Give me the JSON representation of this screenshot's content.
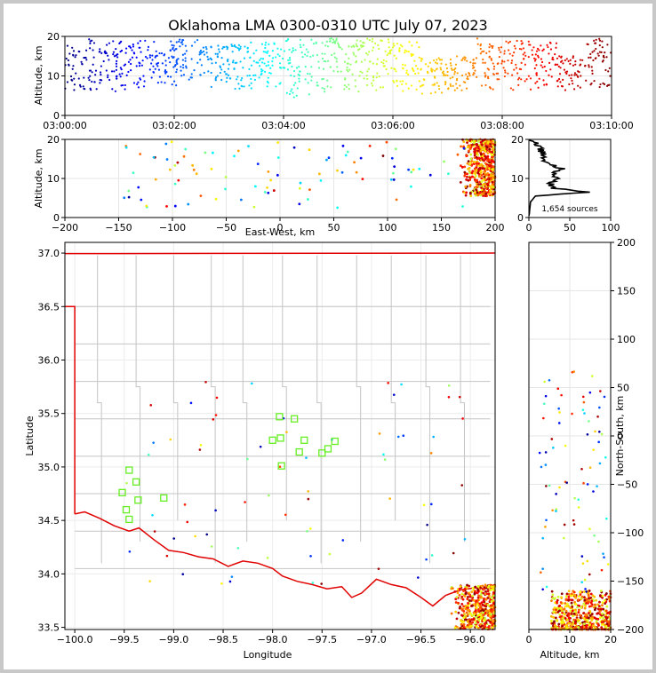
{
  "chart_data": {
    "type": "scatter",
    "title": "Oklahoma LMA 0300-0310 UTC July 07, 2023",
    "source_count_label": "1,654 sources",
    "colormap": "jet (time)",
    "panels": {
      "time_height": {
        "ylabel": "Altitude, km",
        "ylim": [
          0,
          20
        ],
        "yticks": [
          "0",
          "10",
          "20"
        ],
        "xlim_utc": [
          "03:00:00",
          "03:10:00"
        ],
        "xticks": [
          "03:00:00",
          "03:02:00",
          "03:04:00",
          "03:06:00",
          "03:08:00",
          "03:10:00"
        ],
        "columns_approx": [
          {
            "t_min": 0.0,
            "alt_min": 5.5,
            "alt_max": 19.5
          },
          {
            "t_min": 0.5,
            "alt_min": 6.0,
            "alt_max": 19.0
          },
          {
            "t_min": 1.0,
            "alt_min": 6.5,
            "alt_max": 19.0
          },
          {
            "t_min": 1.5,
            "alt_min": 7.0,
            "alt_max": 19.0
          },
          {
            "t_min": 2.0,
            "alt_min": 6.5,
            "alt_max": 19.5
          },
          {
            "t_min": 2.5,
            "alt_min": 7.0,
            "alt_max": 18.0
          },
          {
            "t_min": 3.0,
            "alt_min": 6.5,
            "alt_max": 19.0
          },
          {
            "t_min": 3.5,
            "alt_min": 7.0,
            "alt_max": 18.5
          },
          {
            "t_min": 4.0,
            "alt_min": 4.0,
            "alt_max": 19.5
          },
          {
            "t_min": 4.5,
            "alt_min": 6.0,
            "alt_max": 19.5
          },
          {
            "t_min": 5.0,
            "alt_min": 6.0,
            "alt_max": 19.0
          },
          {
            "t_min": 5.5,
            "alt_min": 6.0,
            "alt_max": 19.5
          },
          {
            "t_min": 6.0,
            "alt_min": 6.0,
            "alt_max": 19.0
          },
          {
            "t_min": 6.5,
            "alt_min": 5.5,
            "alt_max": 14.5
          },
          {
            "t_min": 7.0,
            "alt_min": 5.5,
            "alt_max": 15.0
          },
          {
            "t_min": 7.5,
            "alt_min": 6.0,
            "alt_max": 19.5
          },
          {
            "t_min": 8.0,
            "alt_min": 6.0,
            "alt_max": 19.0
          },
          {
            "t_min": 8.5,
            "alt_min": 6.0,
            "alt_max": 18.5
          },
          {
            "t_min": 9.0,
            "alt_min": 6.0,
            "alt_max": 15.0
          },
          {
            "t_min": 9.5,
            "alt_min": 6.0,
            "alt_max": 19.5
          }
        ]
      },
      "ew_height": {
        "xlabel": "East-West, km",
        "ylabel": "Altitude, km",
        "xlim": [
          -200,
          200
        ],
        "ylim": [
          0,
          20
        ],
        "xticks": [
          "−200",
          "−150",
          "−100",
          "−50",
          "0",
          "50",
          "100",
          "150",
          "200"
        ],
        "yticks": [
          "0",
          "10",
          "20"
        ]
      },
      "height_histogram": {
        "xlim": [
          0,
          100
        ],
        "ylim": [
          0,
          20
        ],
        "xticks": [
          "0",
          "50",
          "100"
        ],
        "yticks": [
          "0",
          "10",
          "20"
        ],
        "profile_approx": [
          {
            "alt": 4,
            "count": 2
          },
          {
            "alt": 5.5,
            "count": 8
          },
          {
            "alt": 6.5,
            "count": 75
          },
          {
            "alt": 7.5,
            "count": 30
          },
          {
            "alt": 9,
            "count": 25
          },
          {
            "alt": 10,
            "count": 38
          },
          {
            "alt": 11,
            "count": 28
          },
          {
            "alt": 12.5,
            "count": 40
          },
          {
            "alt": 14,
            "count": 22
          },
          {
            "alt": 16,
            "count": 18
          },
          {
            "alt": 18,
            "count": 12
          },
          {
            "alt": 19.5,
            "count": 10
          }
        ]
      },
      "plan_view": {
        "xlabel": "Longitude",
        "ylabel": "Latitude",
        "xlim": [
          -100.1,
          -95.75
        ],
        "ylim": [
          33.48,
          37.1
        ],
        "xticks": [
          "−100.0",
          "−99.5",
          "−99.0",
          "−98.5",
          "−98.0",
          "−97.5",
          "−97.0",
          "−96.5",
          "−96.0"
        ],
        "yticks": [
          "33.5",
          "34.0",
          "34.5",
          "35.0",
          "35.5",
          "36.0",
          "36.5",
          "37.0"
        ],
        "stations": [
          [
            -99.45,
            34.97
          ],
          [
            -99.38,
            34.86
          ],
          [
            -99.52,
            34.76
          ],
          [
            -99.36,
            34.69
          ],
          [
            -99.48,
            34.6
          ],
          [
            -99.45,
            34.51
          ],
          [
            -99.1,
            34.71
          ],
          [
            -97.93,
            35.47
          ],
          [
            -97.78,
            35.45
          ],
          [
            -98.0,
            35.25
          ],
          [
            -97.92,
            35.27
          ],
          [
            -97.68,
            35.25
          ],
          [
            -97.73,
            35.14
          ],
          [
            -97.91,
            35.01
          ],
          [
            -97.5,
            35.13
          ],
          [
            -97.44,
            35.17
          ],
          [
            -97.37,
            35.24
          ]
        ]
      },
      "ns_height": {
        "xlabel": "Altitude, km",
        "ylabel": "North-South, km",
        "xlim": [
          0,
          20
        ],
        "ylim": [
          -200,
          200
        ],
        "xticks": [
          "0",
          "10",
          "20"
        ],
        "yticks": [
          "−200",
          "−150",
          "−100",
          "−50",
          "0",
          "50",
          "100",
          "150",
          "200"
        ]
      }
    }
  }
}
